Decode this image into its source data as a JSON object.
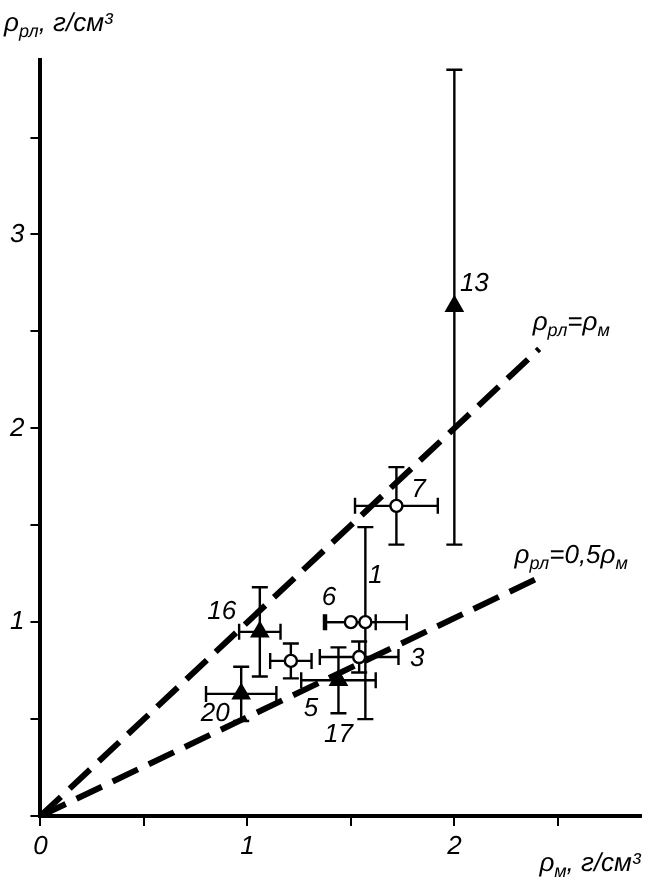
{
  "chart_data": {
    "type": "scatter",
    "xlabel": "ρ$_{м}$, г/см³",
    "ylabel": "ρ$_{рл}$, г/см³",
    "xlim": [
      0,
      2.9
    ],
    "ylim": [
      0,
      3.9
    ],
    "xticks": [
      0,
      {
        "value": 0.5,
        "label": null
      },
      1,
      {
        "value": 1.5,
        "label": null
      },
      2,
      {
        "value": 2.5,
        "label": null
      }
    ],
    "yticks": [
      {
        "value": 0,
        "label": null
      },
      {
        "value": 0.5,
        "label": null
      },
      1,
      {
        "value": 1.5,
        "label": null
      },
      2,
      {
        "value": 2.5,
        "label": null
      },
      3,
      {
        "value": 3.5,
        "label": null
      }
    ],
    "grid": false,
    "legend": false,
    "series": [
      {
        "type": "scatter",
        "marker": "circle",
        "color": "#000000",
        "x": [
          1.57,
          1.54,
          1.21,
          1.5,
          1.72
        ],
        "values": [
          1.0,
          0.82,
          0.8,
          1.0,
          1.6
        ],
        "errors": [
          [
            0.5,
            1.49
          ],
          0.08,
          0.09,
          null,
          0.2
        ],
        "xerrors": [
          0.2,
          0.19,
          0.1,
          0.12,
          0.2
        ]
      },
      {
        "type": "scatter",
        "marker": "triangle",
        "color": "#000000",
        "x": [
          2.0,
          1.06,
          1.44,
          0.97
        ],
        "values": [
          2.63,
          0.95,
          0.7,
          0.63
        ],
        "errors": [
          [
            1.4,
            3.85
          ],
          0.23,
          0.17,
          0.14
        ],
        "xerrors": [
          null,
          0.1,
          0.18,
          0.17
        ]
      },
      {
        "type": "line",
        "marker": "none",
        "line_style": "dashed",
        "color": "#000000",
        "x": [
          0,
          2.41
        ],
        "values": [
          0,
          2.41
        ]
      },
      {
        "type": "line",
        "marker": "none",
        "line_style": "dashed",
        "color": "#000000",
        "x": [
          0,
          2.41
        ],
        "values": [
          0,
          1.23
        ]
      }
    ],
    "annotations": [
      {
        "text": "1",
        "x": 1.57,
        "y": 1.0
      },
      {
        "text": "3",
        "x": 1.54,
        "y": 0.82
      },
      {
        "text": "5",
        "x": 1.21,
        "y": 0.8
      },
      {
        "text": "6",
        "x": 1.5,
        "y": 1.0
      },
      {
        "text": "7",
        "x": 1.72,
        "y": 1.6
      },
      {
        "text": "13",
        "x": 2.0,
        "y": 2.63
      },
      {
        "text": "16",
        "x": 1.06,
        "y": 0.95
      },
      {
        "text": "17",
        "x": 1.44,
        "y": 0.7
      },
      {
        "text": "20",
        "x": 0.97,
        "y": 0.63
      },
      {
        "text": "ρ$_{рл}$=ρ$_{м}$",
        "x": 2.41,
        "y": 2.41
      },
      {
        "text": "ρ$_{рл}$=0,5ρ$_{м}$",
        "x": 2.41,
        "y": 1.23
      }
    ]
  }
}
